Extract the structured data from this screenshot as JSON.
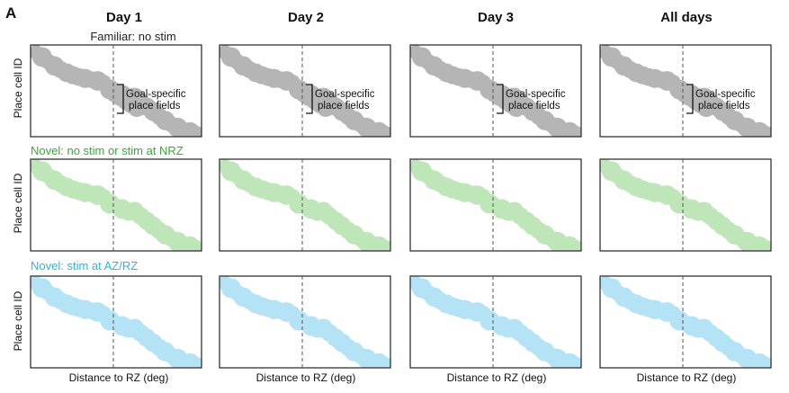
{
  "figure": {
    "panel_letter": "A",
    "column_headers": [
      "Day 1",
      "Day 2",
      "Day 3",
      "All days"
    ],
    "y_axis_label": "Place cell ID",
    "x_axis_label": "Distance to RZ (deg)",
    "annotation": {
      "line1": "Goal-specific",
      "line2": "place fields"
    },
    "rows": [
      {
        "id": "familiar",
        "label": "Familiar: no stim",
        "label_color": "#222222",
        "fill_color": "#b5b5b5",
        "shows_goal_fields": true
      },
      {
        "id": "novel-nrz",
        "label": "Novel: no stim or stim at NRZ",
        "label_color": "#3aa83a",
        "fill_color": "#bfe6b8",
        "shows_goal_fields": false
      },
      {
        "id": "novel-azrz",
        "label": "Novel: stim at AZ/RZ",
        "label_color": "#2db3e6",
        "fill_color": "#b3e3f5",
        "shows_goal_fields": false
      }
    ],
    "colors": {
      "frame": "#222222",
      "dashed_line": "#555555"
    }
  }
}
